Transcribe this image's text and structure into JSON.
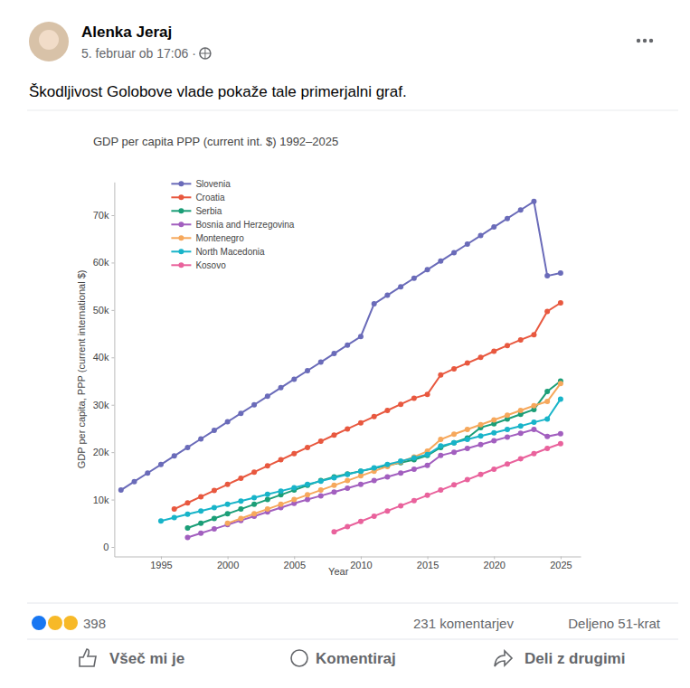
{
  "post": {
    "author": "Alenka Jeraj",
    "date": "5. februar ob 17:06 ·",
    "text": "Škodljivost Golobove vlade pokaže tale primerjalni graf.",
    "reactions": 398,
    "comments": "231 komentarjev",
    "shares": "Deljeno 51-krat",
    "buttons": [
      "Všeč mi je",
      "Komentiraj",
      "Deli z drugimi"
    ]
  },
  "chart_data": {
    "type": "line",
    "title": "GDP per capita PPP (current int. $) 1992–2025",
    "x_label": "Year",
    "y_label": "GDP per capita, PPP (current international $)",
    "x": [
      1992,
      1993,
      1994,
      1995,
      1996,
      1997,
      1998,
      1999,
      2000,
      2001,
      2002,
      2003,
      2004,
      2005,
      2006,
      2007,
      2008,
      2009,
      2010,
      2011,
      2012,
      2013,
      2014,
      2015,
      2016,
      2017,
      2018,
      2019,
      2020,
      2021,
      2022,
      2023,
      2024,
      2025
    ],
    "series": [
      {
        "name": "Slovenia",
        "color": "#6a6bb9",
        "values": [
          12000,
          13800,
          15600,
          17400,
          19200,
          21000,
          22800,
          24600,
          26400,
          28200,
          30000,
          31800,
          33600,
          35400,
          37200,
          39000,
          40800,
          42600,
          44400,
          51300,
          53100,
          54900,
          56700,
          58500,
          60300,
          62100,
          63900,
          65700,
          67500,
          69300,
          71100,
          72900,
          57200,
          57800
        ]
      },
      {
        "name": "Croatia",
        "color": "#e8583f",
        "values": [
          null,
          null,
          null,
          null,
          8000,
          9300,
          10600,
          11900,
          13200,
          14500,
          15800,
          17100,
          18400,
          19700,
          21000,
          22300,
          23600,
          24900,
          26200,
          27500,
          28800,
          30100,
          31400,
          32200,
          36300,
          37600,
          38800,
          40000,
          41300,
          42500,
          43700,
          44800,
          49700,
          51500
        ]
      },
      {
        "name": "Serbia",
        "color": "#1b9e77",
        "values": [
          null,
          null,
          null,
          null,
          null,
          4000,
          5000,
          6000,
          7000,
          8000,
          9000,
          10000,
          11000,
          12000,
          13000,
          14000,
          14800,
          15400,
          16000,
          16600,
          17200,
          17800,
          18400,
          19300,
          21000,
          22000,
          23000,
          25200,
          26000,
          27000,
          28000,
          29000,
          32800,
          35000
        ]
      },
      {
        "name": "Bosnia and Herzegovina",
        "color": "#a25fbf",
        "values": [
          null,
          null,
          null,
          null,
          null,
          2000,
          2900,
          3800,
          4700,
          5600,
          6500,
          7400,
          8300,
          9200,
          10000,
          10800,
          11600,
          12400,
          13200,
          14000,
          14800,
          15600,
          16400,
          17200,
          19300,
          20000,
          20800,
          21600,
          22400,
          23200,
          24000,
          24800,
          23300,
          23900
        ]
      },
      {
        "name": "Montenegro",
        "color": "#f6a85c",
        "values": [
          null,
          null,
          null,
          null,
          null,
          null,
          null,
          null,
          5000,
          6000,
          7000,
          8000,
          9000,
          10000,
          11000,
          12000,
          13000,
          14000,
          15000,
          16000,
          17000,
          18000,
          19000,
          20200,
          22700,
          23800,
          24800,
          25800,
          26800,
          27800,
          28800,
          29800,
          30700,
          34500
        ]
      },
      {
        "name": "North Macedonia",
        "color": "#18b4c9",
        "values": [
          null,
          null,
          null,
          5500,
          6200,
          6900,
          7600,
          8300,
          9000,
          9700,
          10400,
          11100,
          11800,
          12500,
          13200,
          13900,
          14600,
          15300,
          16000,
          16700,
          17400,
          18100,
          18800,
          19500,
          21300,
          22000,
          22700,
          23400,
          24100,
          24800,
          25500,
          26300,
          27000,
          31200
        ]
      },
      {
        "name": "Kosovo",
        "color": "#e9629c",
        "values": [
          null,
          null,
          null,
          null,
          null,
          null,
          null,
          null,
          null,
          null,
          null,
          null,
          null,
          null,
          null,
          null,
          3200,
          4300,
          5400,
          6500,
          7600,
          8700,
          9800,
          10900,
          12000,
          13100,
          14200,
          15300,
          16400,
          17500,
          18600,
          19700,
          20800,
          21800
        ]
      }
    ],
    "xlim": [
      1991.5,
      2026.5
    ],
    "ylim": [
      -2000,
      77000
    ],
    "xticks": [
      1995,
      2000,
      2005,
      2010,
      2015,
      2020,
      2025
    ],
    "yticks": [
      0,
      {
        "value": 10000,
        "label": "10k"
      },
      {
        "value": 20000,
        "label": "20k"
      },
      {
        "value": 30000,
        "label": "30k"
      },
      {
        "value": 40000,
        "label": "40k"
      },
      {
        "value": 50000,
        "label": "50k"
      },
      {
        "value": 60000,
        "label": "60k"
      },
      {
        "value": 70000,
        "label": "70k"
      }
    ],
    "grid": false,
    "legend": "top-left",
    "marker": "circle",
    "line_style": "solid"
  }
}
